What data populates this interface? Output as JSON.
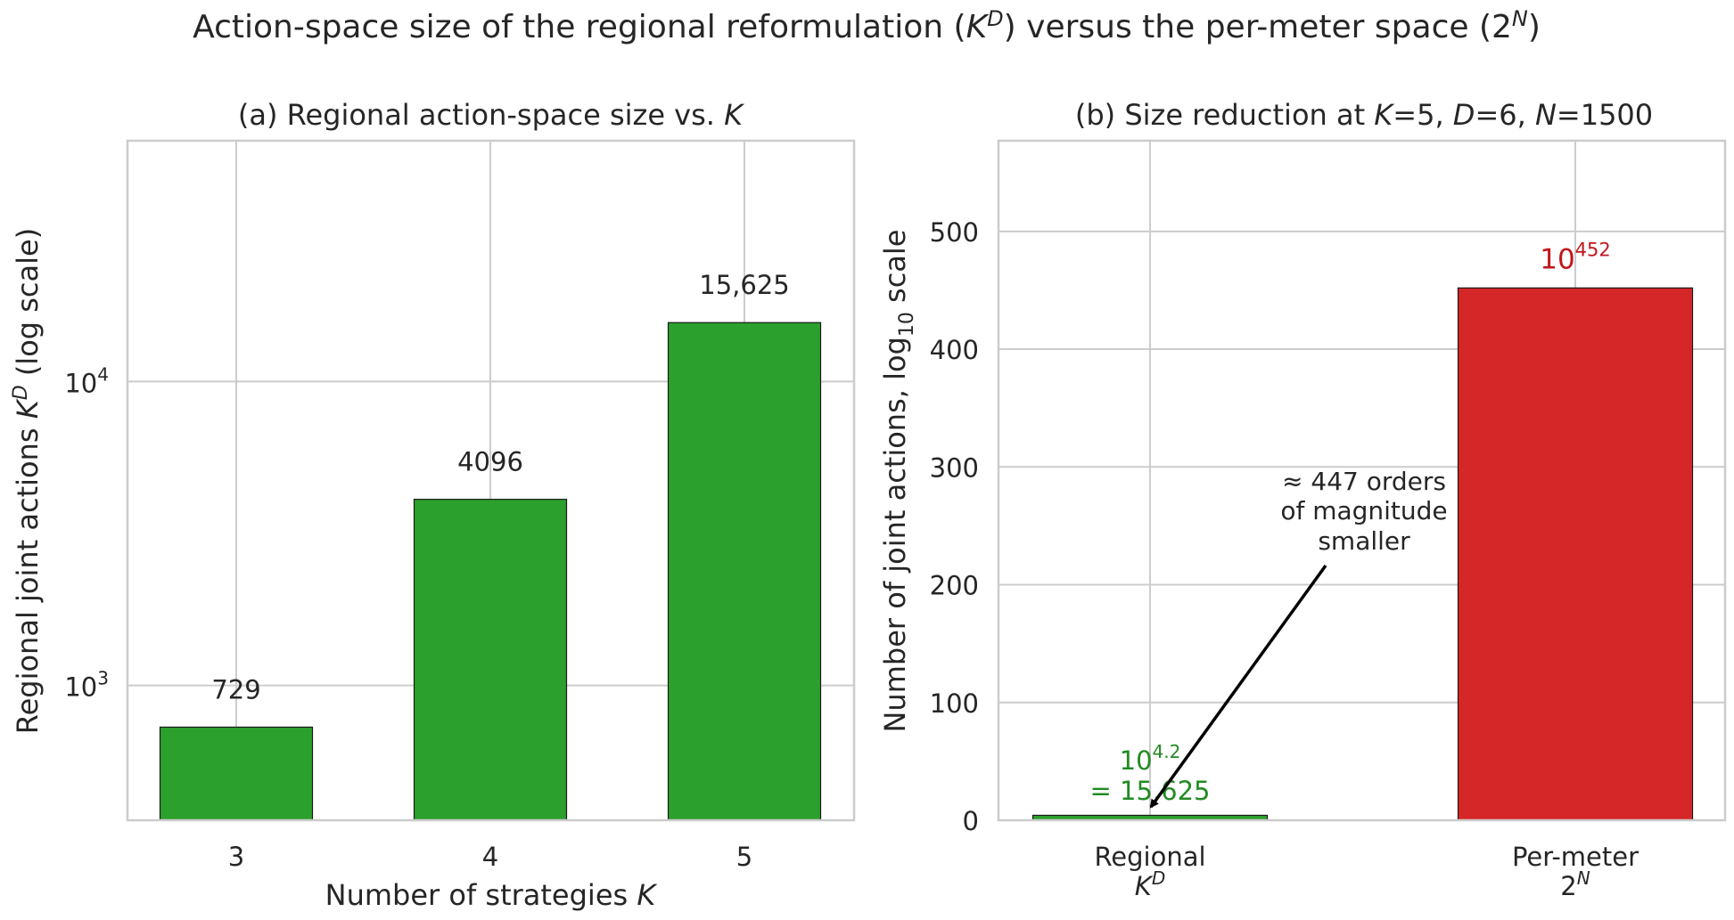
{
  "figure": {
    "title": {
      "pre": "Action-space size of the regional reformulation (",
      "kd_base": "K",
      "kd_sup": "D",
      "mid": ") versus the per-meter space (",
      "pn_base": "2",
      "pn_sup": "N",
      "post": ")"
    }
  },
  "panels": {
    "a": {
      "title_prefix": "(a) Regional action-space size vs. ",
      "title_var": "K",
      "xlabel_text": "Number of strategies ",
      "xlabel_var": "K",
      "ylabel_text": "Regional joint actions ",
      "ylabel_base": "K",
      "ylabel_sup": "D",
      "ylabel_suffix": "  (log scale)",
      "ytick_labels": [
        {
          "base": "10",
          "exp": "3"
        },
        {
          "base": "10",
          "exp": "4"
        }
      ],
      "bar_labels": [
        "729",
        "4096",
        "15,625"
      ]
    },
    "b": {
      "title_parts": [
        {
          "t": "(b) Size reduction at ",
          "i": false
        },
        {
          "t": "K",
          "i": true
        },
        {
          "t": "=5, ",
          "i": false
        },
        {
          "t": "D",
          "i": true
        },
        {
          "t": "=6, ",
          "i": false
        },
        {
          "t": "N",
          "i": true
        },
        {
          "t": "=1500",
          "i": false
        }
      ],
      "ylabel_pre": "Number of joint actions, log",
      "ylabel_sub": "10",
      "ylabel_post": "  scale",
      "ytick_labels": [
        "0",
        "100",
        "200",
        "300",
        "400",
        "500"
      ],
      "categories": [
        {
          "line1": "Regional",
          "base": "K",
          "sup": "D",
          "italic": true
        },
        {
          "line1": "Per-meter",
          "base": "2",
          "sup": "N",
          "italic": false
        }
      ],
      "regional_label": {
        "base": "10",
        "exp": "4.2",
        "line2": "= 15,625"
      },
      "permeter_label": {
        "base": "10",
        "exp": "452"
      },
      "annotation": [
        "≈  447 orders",
        "of magnitude",
        "smaller"
      ]
    }
  },
  "chart_data": [
    {
      "type": "bar",
      "title": "(a) Regional action-space size vs. K",
      "xlabel": "Number of strategies K",
      "ylabel": "Regional joint actions K^D (log scale)",
      "yscale": "log",
      "categories": [
        "3",
        "4",
        "5"
      ],
      "values": [
        729,
        4096,
        15625
      ],
      "ylim": [
        360,
        62000
      ],
      "yticks": [
        1000,
        10000
      ],
      "grid": true,
      "color": "#2ca02c"
    },
    {
      "type": "bar",
      "title": "(b) Size reduction at K=5, D=6, N=1500",
      "xlabel": "",
      "ylabel": "Number of joint actions, log10 scale",
      "categories": [
        "Regional K^D",
        "Per-meter 2^N"
      ],
      "values": [
        4.2,
        452
      ],
      "ylim": [
        0,
        577
      ],
      "yticks": [
        0,
        100,
        200,
        300,
        400,
        500
      ],
      "grid": true,
      "colors": [
        "#2ca02c",
        "#d62728"
      ],
      "annotation": "≈ 447 orders of magnitude smaller"
    }
  ],
  "colors": {
    "green": "#2ca02c",
    "red": "#d62728",
    "annotation_green": "#228b22",
    "annotation_red": "#c0171c",
    "grid": "#cccccc",
    "spine": "#cccccc",
    "text": "#262626"
  }
}
